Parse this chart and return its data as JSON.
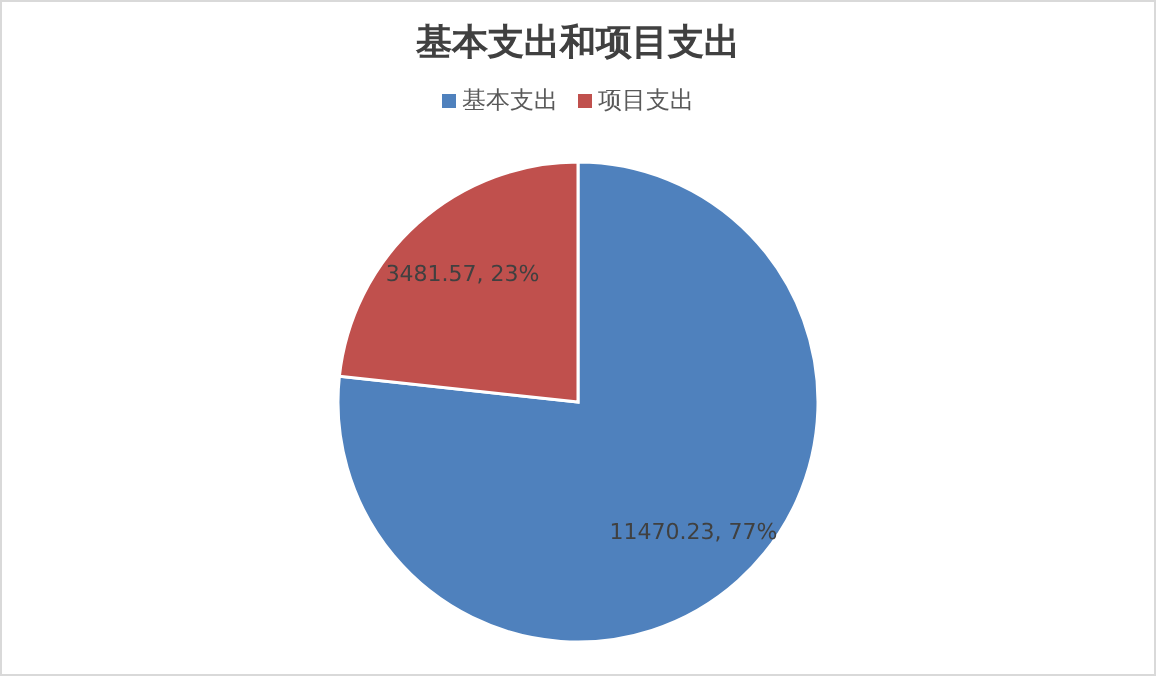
{
  "chart_data": {
    "type": "pie",
    "title": "基本支出和项目支出",
    "categories": [
      "基本支出",
      "项目支出"
    ],
    "values": [
      11470.23,
      3481.57
    ],
    "colors": [
      "#4f81bd",
      "#c0504d"
    ],
    "value_labels": [
      "11470.23, 77%",
      "3481.57, 23%"
    ],
    "legend": "top"
  }
}
